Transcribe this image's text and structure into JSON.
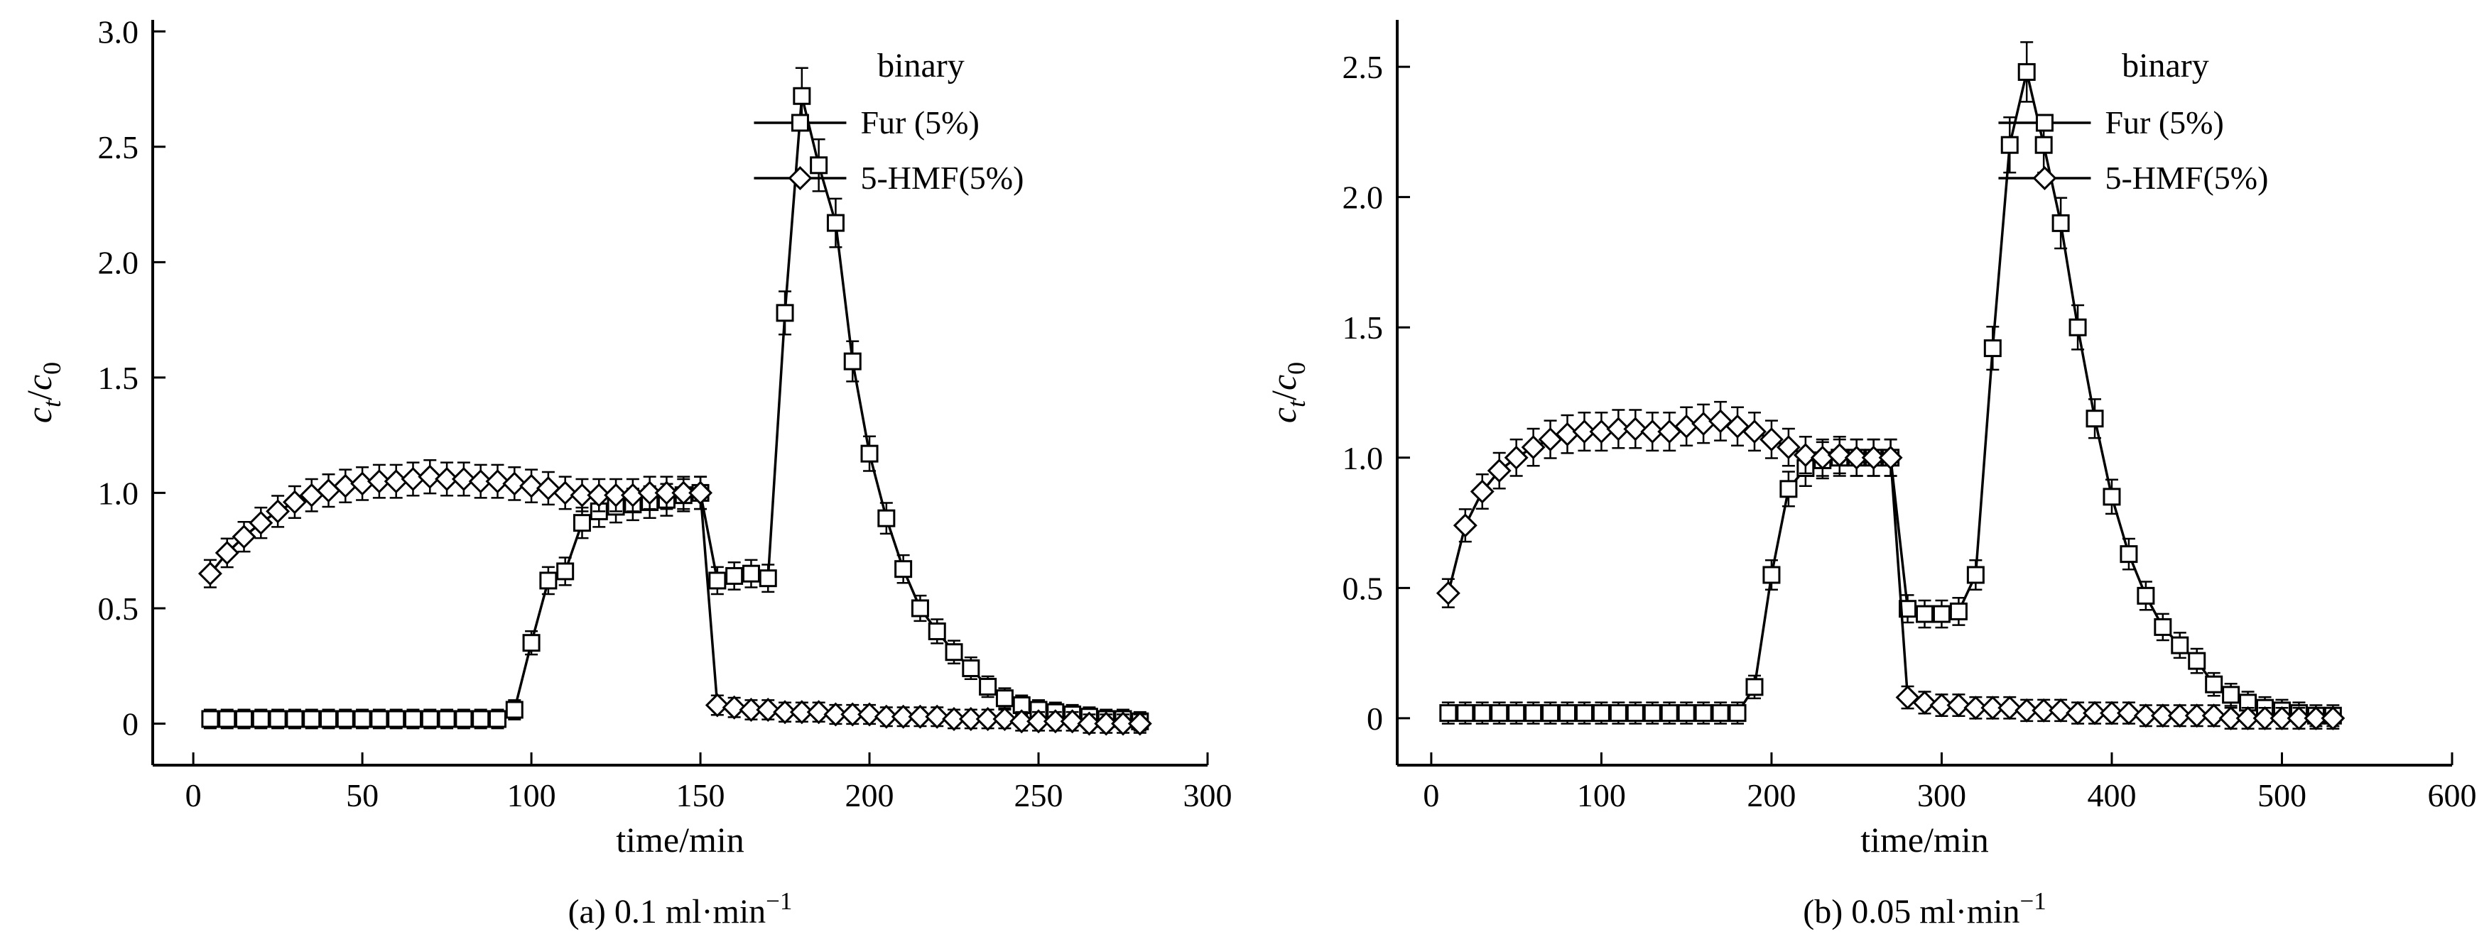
{
  "figure": {
    "background": "#ffffff",
    "ink": "#000000"
  },
  "chart_data": [
    {
      "id": "a",
      "type": "line",
      "caption_parts": [
        {
          "t": "(a) 0.1 ml·min"
        },
        {
          "t": "−1",
          "sup": true
        }
      ],
      "xlabel": "time/min",
      "ylabel_parts": [
        {
          "t": "c",
          "italic": true
        },
        {
          "t": "t",
          "sub": true,
          "italic": true
        },
        {
          "t": "/"
        },
        {
          "t": "c",
          "italic": true
        },
        {
          "t": "0",
          "sub": true
        }
      ],
      "legend": {
        "title": "binary",
        "entries": [
          {
            "label": "Fur (5%)",
            "marker": "square"
          },
          {
            "label": "5-HMF(5%)",
            "marker": "diamond"
          }
        ]
      },
      "xlim": [
        -12,
        300
      ],
      "ylim": [
        -0.18,
        3.05
      ],
      "xticks": [
        0,
        50,
        100,
        150,
        200,
        250,
        300
      ],
      "xtick_labels": [
        "0",
        "50",
        "100",
        "150",
        "200",
        "250",
        "300"
      ],
      "yticks": [
        0,
        0.5,
        1.0,
        1.5,
        2.0,
        2.5,
        3.0
      ],
      "ytick_labels": [
        "0",
        "0.5",
        "1.0",
        "1.5",
        "2.0",
        "2.5",
        "3.0"
      ],
      "error_bar": {
        "base": 0.04,
        "rel": 0.03
      },
      "series": [
        {
          "name": "Fur (5%)",
          "marker": "square",
          "x": [
            5,
            10,
            15,
            20,
            25,
            30,
            35,
            40,
            45,
            50,
            55,
            60,
            65,
            70,
            75,
            80,
            85,
            90,
            95,
            100,
            105,
            110,
            115,
            120,
            125,
            130,
            135,
            140,
            145,
            150,
            155,
            160,
            165,
            170,
            175,
            180,
            185,
            190,
            195,
            200,
            205,
            210,
            215,
            220,
            225,
            230,
            235,
            240,
            245,
            250,
            255,
            260,
            265,
            270,
            275,
            280
          ],
          "y": [
            0.02,
            0.02,
            0.02,
            0.02,
            0.02,
            0.02,
            0.02,
            0.02,
            0.02,
            0.02,
            0.02,
            0.02,
            0.02,
            0.02,
            0.02,
            0.02,
            0.02,
            0.02,
            0.06,
            0.35,
            0.62,
            0.66,
            0.87,
            0.92,
            0.94,
            0.95,
            0.96,
            0.97,
            0.99,
            1.0,
            0.62,
            0.64,
            0.65,
            0.63,
            1.78,
            2.72,
            2.42,
            2.17,
            1.57,
            1.17,
            0.89,
            0.67,
            0.5,
            0.4,
            0.31,
            0.24,
            0.16,
            0.11,
            0.08,
            0.06,
            0.05,
            0.04,
            0.03,
            0.02,
            0.02,
            0.01
          ]
        },
        {
          "name": "5-HMF(5%)",
          "marker": "diamond",
          "x": [
            5,
            10,
            15,
            20,
            25,
            30,
            35,
            40,
            45,
            50,
            55,
            60,
            65,
            70,
            75,
            80,
            85,
            90,
            95,
            100,
            105,
            110,
            115,
            120,
            125,
            130,
            135,
            140,
            145,
            150,
            155,
            160,
            165,
            170,
            175,
            180,
            185,
            190,
            195,
            200,
            205,
            210,
            215,
            220,
            225,
            230,
            235,
            240,
            245,
            250,
            255,
            260,
            265,
            270,
            275,
            280
          ],
          "y": [
            0.65,
            0.74,
            0.81,
            0.87,
            0.92,
            0.96,
            0.99,
            1.01,
            1.03,
            1.04,
            1.05,
            1.05,
            1.06,
            1.07,
            1.06,
            1.06,
            1.05,
            1.05,
            1.04,
            1.03,
            1.02,
            1.0,
            0.99,
            0.99,
            0.99,
            0.99,
            1.0,
            1.0,
            1.0,
            1.0,
            0.08,
            0.07,
            0.06,
            0.06,
            0.05,
            0.05,
            0.05,
            0.04,
            0.04,
            0.04,
            0.03,
            0.03,
            0.03,
            0.03,
            0.02,
            0.02,
            0.02,
            0.02,
            0.01,
            0.01,
            0.01,
            0.01,
            0.0,
            0.0,
            0.0,
            0.0
          ]
        }
      ]
    },
    {
      "id": "b",
      "type": "line",
      "caption_parts": [
        {
          "t": "(b) 0.05 ml·min"
        },
        {
          "t": "−1",
          "sup": true
        }
      ],
      "xlabel": "time/min",
      "ylabel_parts": [
        {
          "t": "c",
          "italic": true
        },
        {
          "t": "t",
          "sub": true,
          "italic": true
        },
        {
          "t": "/"
        },
        {
          "t": "c",
          "italic": true
        },
        {
          "t": "0",
          "sub": true
        }
      ],
      "legend": {
        "title": "binary",
        "entries": [
          {
            "label": "Fur (5%)",
            "marker": "square"
          },
          {
            "label": "5-HMF(5%)",
            "marker": "diamond"
          }
        ]
      },
      "xlim": [
        -20,
        600
      ],
      "ylim": [
        -0.18,
        2.68
      ],
      "xticks": [
        0,
        100,
        200,
        300,
        400,
        500,
        600
      ],
      "xtick_labels": [
        "0",
        "100",
        "200",
        "300",
        "400",
        "500",
        "600"
      ],
      "yticks": [
        0,
        0.5,
        1.0,
        1.5,
        2.0,
        2.5
      ],
      "ytick_labels": [
        "0",
        "0.5",
        "1.0",
        "1.5",
        "2.0",
        "2.5"
      ],
      "error_bar": {
        "base": 0.04,
        "rel": 0.03
      },
      "series": [
        {
          "name": "Fur (5%)",
          "marker": "square",
          "x": [
            10,
            20,
            30,
            40,
            50,
            60,
            70,
            80,
            90,
            100,
            110,
            120,
            130,
            140,
            150,
            160,
            170,
            180,
            190,
            200,
            210,
            220,
            230,
            240,
            250,
            260,
            270,
            280,
            290,
            300,
            310,
            320,
            330,
            340,
            350,
            360,
            370,
            380,
            390,
            400,
            410,
            420,
            430,
            440,
            450,
            460,
            470,
            480,
            490,
            500,
            510,
            520,
            530
          ],
          "y": [
            0.02,
            0.02,
            0.02,
            0.02,
            0.02,
            0.02,
            0.02,
            0.02,
            0.02,
            0.02,
            0.02,
            0.02,
            0.02,
            0.02,
            0.02,
            0.02,
            0.02,
            0.02,
            0.12,
            0.55,
            0.88,
            0.96,
            0.99,
            1.0,
            1.0,
            1.0,
            1.0,
            0.42,
            0.4,
            0.4,
            0.41,
            0.55,
            1.42,
            2.2,
            2.48,
            2.2,
            1.9,
            1.5,
            1.15,
            0.85,
            0.63,
            0.47,
            0.35,
            0.28,
            0.22,
            0.13,
            0.09,
            0.06,
            0.04,
            0.03,
            0.02,
            0.01,
            0.01
          ]
        },
        {
          "name": "5-HMF(5%)",
          "marker": "diamond",
          "x": [
            10,
            20,
            30,
            40,
            50,
            60,
            70,
            80,
            90,
            100,
            110,
            120,
            130,
            140,
            150,
            160,
            170,
            180,
            190,
            200,
            210,
            220,
            230,
            240,
            250,
            260,
            270,
            280,
            290,
            300,
            310,
            320,
            330,
            340,
            350,
            360,
            370,
            380,
            390,
            400,
            410,
            420,
            430,
            440,
            450,
            460,
            470,
            480,
            490,
            500,
            510,
            520,
            530
          ],
          "y": [
            0.48,
            0.74,
            0.87,
            0.95,
            1.0,
            1.04,
            1.07,
            1.09,
            1.1,
            1.1,
            1.11,
            1.11,
            1.1,
            1.1,
            1.12,
            1.13,
            1.14,
            1.12,
            1.1,
            1.07,
            1.04,
            1.01,
            1.0,
            1.01,
            1.0,
            1.0,
            1.0,
            0.08,
            0.06,
            0.05,
            0.05,
            0.04,
            0.04,
            0.04,
            0.03,
            0.03,
            0.03,
            0.02,
            0.02,
            0.02,
            0.02,
            0.01,
            0.01,
            0.01,
            0.01,
            0.01,
            0.0,
            0.0,
            0.0,
            0.0,
            0.0,
            0.0,
            0.0
          ]
        }
      ]
    }
  ]
}
